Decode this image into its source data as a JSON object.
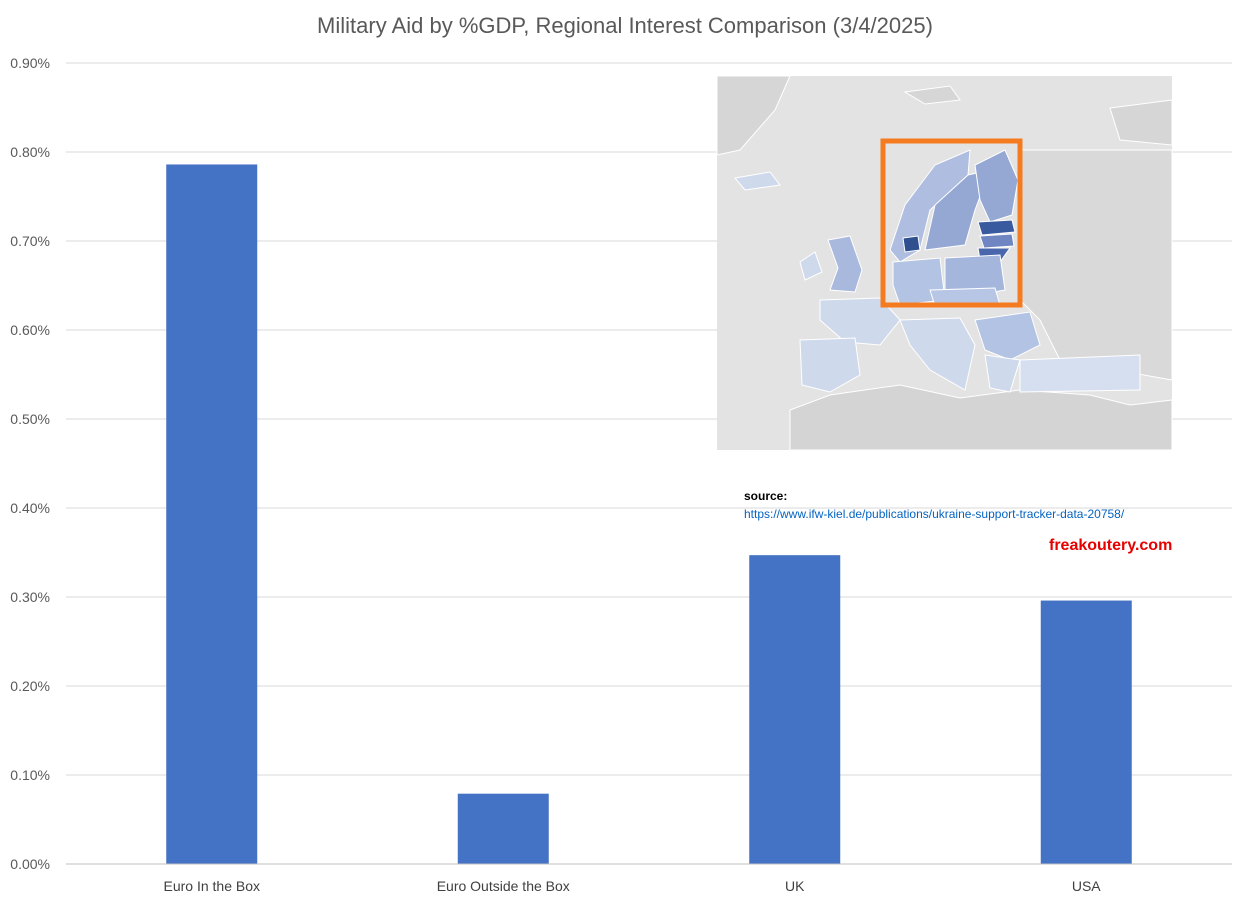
{
  "chart_data": {
    "type": "bar",
    "title": "Military Aid by %GDP, Regional Interest Comparison (3/4/2025)",
    "xlabel": "",
    "ylabel": "",
    "categories": [
      "Euro In the Box",
      "Euro Outside the Box",
      "UK",
      "USA"
    ],
    "values": [
      0.786,
      0.079,
      0.347,
      0.296
    ],
    "ylim": [
      0,
      0.9
    ],
    "yticks": [
      0,
      0.1,
      0.2,
      0.3,
      0.4,
      0.5,
      0.6,
      0.7,
      0.8,
      0.9
    ],
    "ytick_labels": [
      "0.00%",
      "0.10%",
      "0.20%",
      "0.30%",
      "0.40%",
      "0.50%",
      "0.60%",
      "0.70%",
      "0.80%",
      "0.90%"
    ],
    "grid": true,
    "legend": "none",
    "bar_color": "#4472c4"
  },
  "annotations": {
    "source_label": "source:",
    "source_url": "https://www.ifw-kiel.de/publications/ukraine-support-tracker-data-20758/",
    "brand": "freakoutery.com",
    "map_icon": "europe-map-icon",
    "highlight_color": "#f47b20"
  }
}
